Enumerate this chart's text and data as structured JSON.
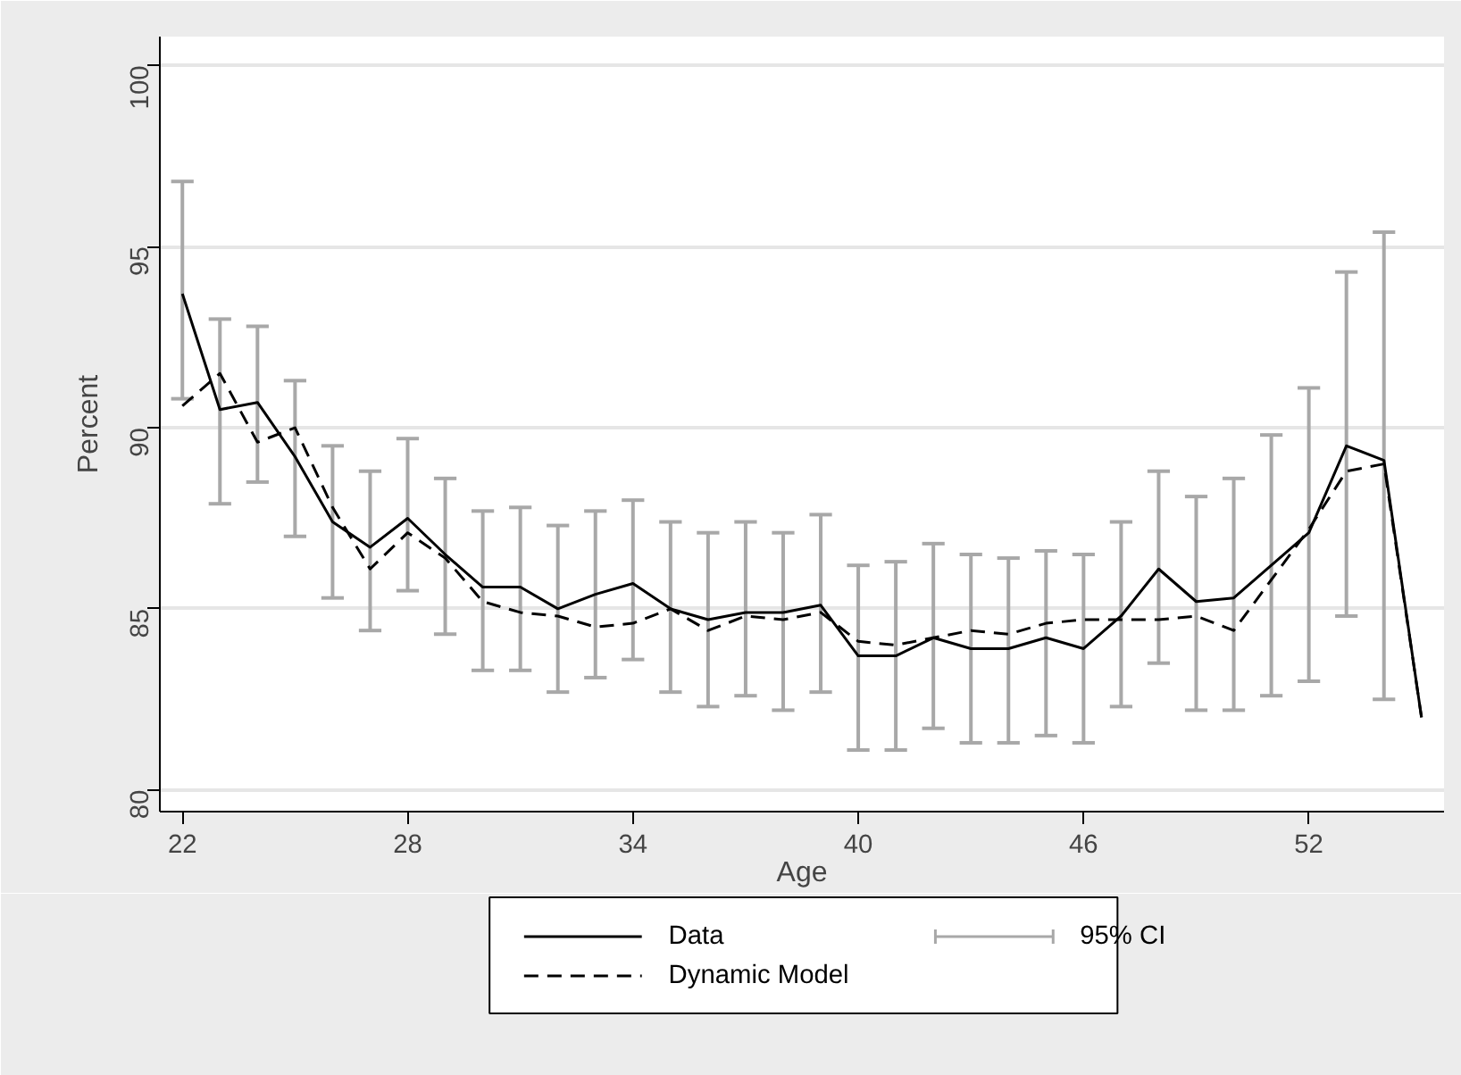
{
  "chart_data": {
    "type": "line",
    "xlabel": "Age",
    "ylabel": "Percent",
    "x": [
      22,
      23,
      24,
      25,
      26,
      27,
      28,
      29,
      30,
      31,
      32,
      33,
      34,
      35,
      36,
      37,
      38,
      39,
      40,
      41,
      42,
      43,
      44,
      45,
      46,
      47,
      48,
      49,
      50,
      51,
      52,
      53,
      54,
      55
    ],
    "series": [
      {
        "name": "Data",
        "color": "#000000",
        "line_style": "solid",
        "values": [
          93.7,
          90.5,
          90.7,
          89.2,
          87.4,
          86.7,
          87.5,
          86.5,
          85.6,
          85.6,
          85.0,
          85.4,
          85.7,
          85.0,
          84.7,
          84.9,
          84.9,
          85.1,
          83.7,
          83.7,
          84.2,
          83.9,
          83.9,
          84.2,
          83.9,
          84.8,
          86.1,
          85.2,
          85.3,
          86.2,
          87.1,
          89.5,
          89.1,
          82.0
        ],
        "errors": [
          [
            90.8,
            96.8
          ],
          [
            87.9,
            93.0
          ],
          [
            88.5,
            92.8
          ],
          [
            87.0,
            91.3
          ],
          [
            85.3,
            89.5
          ],
          [
            84.4,
            88.8
          ],
          [
            85.5,
            89.7
          ],
          [
            84.3,
            88.6
          ],
          [
            83.3,
            87.7
          ],
          [
            83.3,
            87.8
          ],
          [
            82.7,
            87.3
          ],
          [
            83.1,
            87.7
          ],
          [
            83.6,
            88.0
          ],
          [
            82.7,
            87.4
          ],
          [
            82.3,
            87.1
          ],
          [
            82.6,
            87.4
          ],
          [
            82.2,
            87.1
          ],
          [
            82.7,
            87.6
          ],
          [
            81.1,
            86.2
          ],
          [
            81.1,
            86.3
          ],
          [
            81.7,
            86.8
          ],
          [
            81.3,
            86.5
          ],
          [
            81.3,
            86.4
          ],
          [
            81.5,
            86.6
          ],
          [
            81.3,
            86.5
          ],
          [
            82.3,
            87.4
          ],
          [
            83.5,
            88.8
          ],
          [
            82.2,
            88.1
          ],
          [
            82.2,
            88.6
          ],
          [
            82.6,
            89.8
          ],
          [
            83.0,
            91.1
          ],
          [
            84.8,
            94.3
          ],
          [
            82.5,
            95.4
          ],
          null
        ]
      },
      {
        "name": "Dynamic Model",
        "color": "#000000",
        "line_style": "dashed",
        "values": [
          90.6,
          91.5,
          89.6,
          90.0,
          87.8,
          86.1,
          87.1,
          86.4,
          85.2,
          84.9,
          84.8,
          84.5,
          84.6,
          85.0,
          84.4,
          84.8,
          84.7,
          84.9,
          84.1,
          84.0,
          84.2,
          84.4,
          84.3,
          84.6,
          84.7,
          84.7,
          84.7,
          84.8,
          84.4,
          85.8,
          87.2,
          88.8,
          89.0,
          82.0
        ]
      }
    ],
    "annotations": [
      "95% CI"
    ],
    "xlim": [
      21.4,
      55.6
    ],
    "ylim": [
      79.4,
      100.8
    ],
    "xticks": [
      22,
      28,
      34,
      40,
      46,
      52
    ],
    "yticks": [
      80,
      85,
      90,
      95,
      100
    ],
    "grid": "y",
    "legend": "bottom"
  }
}
